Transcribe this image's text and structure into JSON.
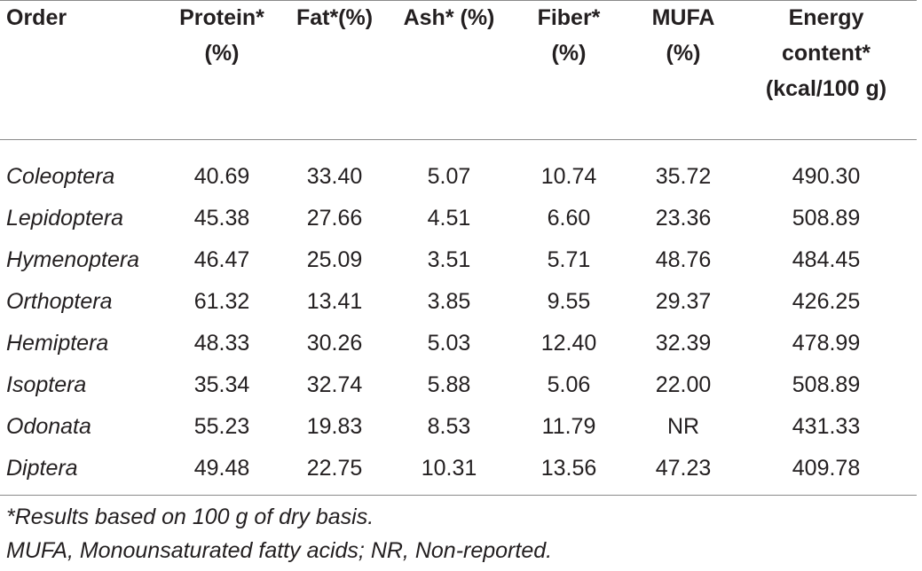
{
  "table": {
    "columns": [
      {
        "line1": "Order",
        "line2": "",
        "line3": ""
      },
      {
        "line1": "Protein*",
        "line2": "(%)",
        "line3": ""
      },
      {
        "line1": "Fat*(%)",
        "line2": "",
        "line3": ""
      },
      {
        "line1": "Ash* (%)",
        "line2": "",
        "line3": ""
      },
      {
        "line1": "Fiber*",
        "line2": "(%)",
        "line3": ""
      },
      {
        "line1": "MUFA",
        "line2": "(%)",
        "line3": ""
      },
      {
        "line1": "Energy",
        "line2": "content*",
        "line3": "(kcal/100 g)"
      }
    ],
    "rows": [
      [
        "Coleoptera",
        "40.69",
        "33.40",
        "5.07",
        "10.74",
        "35.72",
        "490.30"
      ],
      [
        "Lepidoptera",
        "45.38",
        "27.66",
        "4.51",
        "6.60",
        "23.36",
        "508.89"
      ],
      [
        "Hymenoptera",
        "46.47",
        "25.09",
        "3.51",
        "5.71",
        "48.76",
        "484.45"
      ],
      [
        "Orthoptera",
        "61.32",
        "13.41",
        "3.85",
        "9.55",
        "29.37",
        "426.25"
      ],
      [
        "Hemiptera",
        "48.33",
        "30.26",
        "5.03",
        "12.40",
        "32.39",
        "478.99"
      ],
      [
        "Isoptera",
        "35.34",
        "32.74",
        "5.88",
        "5.06",
        "22.00",
        "508.89"
      ],
      [
        "Odonata",
        "55.23",
        "19.83",
        "8.53",
        "11.79",
        "NR",
        "431.33"
      ],
      [
        "Diptera",
        "49.48",
        "22.75",
        "10.31",
        "13.56",
        "47.23",
        "409.78"
      ]
    ]
  },
  "footnotes": [
    "*Results based on 100 g of dry basis.",
    "MUFA, Monounsaturated fatty acids; NR, Non-reported."
  ]
}
